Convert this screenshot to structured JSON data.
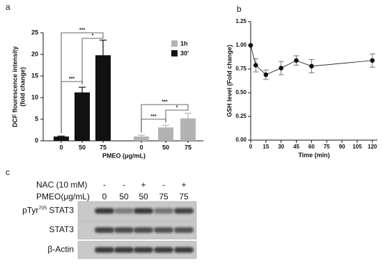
{
  "chart_data": [
    {
      "type": "bar",
      "label": "a",
      "ylabel": [
        "DCF flourescence intensity",
        "(fold change)"
      ],
      "xlabel": "PMEO (μg/mL)",
      "categories": [
        "0",
        "50",
        "75",
        "0",
        "50",
        "75"
      ],
      "series": [
        {
          "name": "1h",
          "color": "#b3b3b3",
          "values": [
            null,
            null,
            null,
            1,
            3.1,
            5.2
          ],
          "errors": [
            null,
            null,
            null,
            0.3,
            0.5,
            1.2
          ]
        },
        {
          "name": "30'",
          "color": "#111111",
          "values": [
            1,
            11.2,
            19.8,
            null,
            null,
            null
          ],
          "errors": [
            0.1,
            1.2,
            3.5,
            null,
            null,
            null
          ]
        }
      ],
      "ylim": [
        0,
        25
      ],
      "yticks": [
        0,
        5,
        10,
        15,
        20,
        25
      ],
      "annotations": [
        "***",
        "*",
        "***",
        "***",
        "*",
        "***"
      ]
    },
    {
      "type": "line",
      "label": "b",
      "ylabel": "GSH level (Fold change)",
      "xlabel": "Time (min)",
      "x": [
        0,
        5,
        15,
        30,
        45,
        60,
        120
      ],
      "values": [
        1.0,
        0.79,
        0.69,
        0.76,
        0.84,
        0.78,
        0.84
      ],
      "errors": [
        0,
        0.07,
        0.05,
        0.07,
        0.05,
        0.07,
        0.07
      ],
      "color": "#111111",
      "xlim": [
        0,
        125
      ],
      "xticks": [
        0,
        15,
        30,
        45,
        60,
        75,
        90,
        105,
        120
      ],
      "ylim": [
        0,
        1.25
      ],
      "yticks": [
        {
          "value": 0,
          "label": "0.00"
        },
        {
          "value": 0.25,
          "label": "0.25"
        },
        {
          "value": 0.5,
          "label": "0.50"
        },
        {
          "value": 0.75,
          "label": "0.75"
        },
        {
          "value": 1.0,
          "label": "1.00"
        },
        {
          "value": 1.25,
          "label": "1.25"
        }
      ]
    }
  ],
  "blot": {
    "label": "c",
    "rows": [
      {
        "name": "NAC (10 mM)",
        "cells": [
          "-",
          "-",
          "+",
          "-",
          "+"
        ]
      },
      {
        "name": "PMEO(μg/mL)",
        "cells": [
          "0",
          "50",
          "50",
          "75",
          "75"
        ]
      }
    ],
    "bands": [
      [
        "pTyr",
        "705",
        " STAT3"
      ],
      [
        "STAT3"
      ],
      [
        "β-Actin"
      ]
    ]
  }
}
